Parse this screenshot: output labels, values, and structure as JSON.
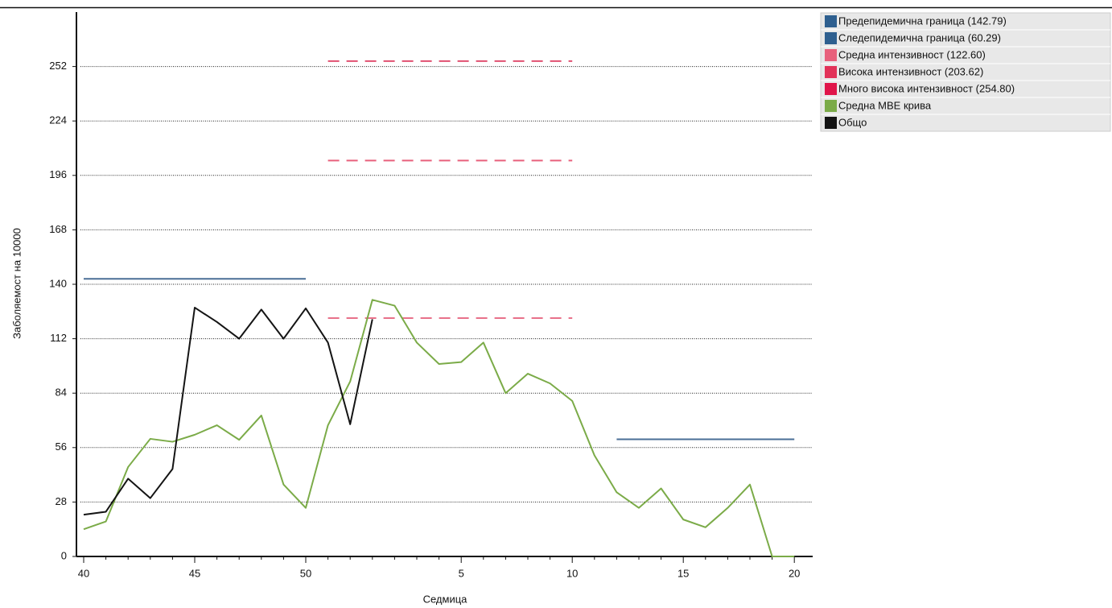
{
  "chart_data": {
    "type": "line",
    "x_label": "Седмица",
    "y_label": "Заболяемост на 10000",
    "categories": [
      "40",
      null,
      null,
      null,
      null,
      "45",
      null,
      null,
      null,
      null,
      "50",
      null,
      null,
      null,
      null,
      null,
      null,
      "5",
      null,
      null,
      null,
      null,
      "10",
      null,
      null,
      null,
      null,
      "15",
      null,
      null,
      null,
      null,
      "20"
    ],
    "ylim": [
      0,
      280
    ],
    "yticks": [
      0,
      28,
      56,
      84,
      112,
      140,
      168,
      196,
      224,
      252
    ],
    "grid": true,
    "legend": "top-right",
    "series": [
      {
        "name": "Предепидемична граница (142.79)",
        "color": "#2e5f8f",
        "line_color": "#4a6e96",
        "style": "solid",
        "values": [
          142.79,
          142.79,
          142.79,
          142.79,
          142.79,
          142.79,
          142.79,
          142.79,
          142.79,
          142.79,
          142.79,
          null,
          null,
          null,
          null,
          null,
          null,
          null,
          null,
          null,
          null,
          null,
          null,
          null,
          null,
          null,
          null,
          null,
          null,
          null,
          null,
          null,
          null
        ]
      },
      {
        "name": "Следепидемична граница (60.29)",
        "color": "#2e5f8f",
        "line_color": "#4a6e96",
        "style": "solid",
        "values": [
          null,
          null,
          null,
          null,
          null,
          null,
          null,
          null,
          null,
          null,
          null,
          null,
          null,
          null,
          null,
          null,
          null,
          null,
          null,
          null,
          null,
          null,
          null,
          null,
          60.29,
          60.29,
          60.29,
          60.29,
          60.29,
          60.29,
          60.29,
          60.29,
          60.29
        ]
      },
      {
        "name": "Средна интензивност (122.60)",
        "color": "#e8617c",
        "line_color": "#e8718a",
        "style": "dashed",
        "values": [
          null,
          null,
          null,
          null,
          null,
          null,
          null,
          null,
          null,
          null,
          null,
          122.6,
          122.6,
          122.6,
          122.6,
          122.6,
          122.6,
          122.6,
          122.6,
          122.6,
          122.6,
          122.6,
          122.6,
          null,
          null,
          null,
          null,
          null,
          null,
          null,
          null,
          null,
          null
        ]
      },
      {
        "name": "Висока интензивност (203.62)",
        "color": "#e23258",
        "line_color": "#e8607c",
        "style": "dashed",
        "values": [
          null,
          null,
          null,
          null,
          null,
          null,
          null,
          null,
          null,
          null,
          null,
          203.62,
          203.62,
          203.62,
          203.62,
          203.62,
          203.62,
          203.62,
          203.62,
          203.62,
          203.62,
          203.62,
          203.62,
          null,
          null,
          null,
          null,
          null,
          null,
          null,
          null,
          null,
          null
        ]
      },
      {
        "name": "Много висока интензивност (254.80)",
        "color": "#e0154a",
        "line_color": "#e05070",
        "style": "dashed",
        "values": [
          null,
          null,
          null,
          null,
          null,
          null,
          null,
          null,
          null,
          null,
          null,
          254.8,
          254.8,
          254.8,
          254.8,
          254.8,
          254.8,
          254.8,
          254.8,
          254.8,
          254.8,
          254.8,
          254.8,
          null,
          null,
          null,
          null,
          null,
          null,
          null,
          null,
          null,
          null
        ]
      },
      {
        "name": "Средна MBE крива",
        "color": "#7bab48",
        "line_color": "#7bab48",
        "style": "solid",
        "values": [
          14,
          18,
          46,
          60.5,
          59,
          62.6,
          67.5,
          60,
          72.5,
          37,
          25,
          67.5,
          90,
          132,
          129,
          110,
          99,
          100,
          110,
          84,
          94,
          89,
          80,
          52,
          33,
          25,
          35,
          19,
          15,
          25,
          37,
          0,
          0
        ]
      },
      {
        "name": "Общо",
        "color": "#141414",
        "line_color": "#141414",
        "style": "solid",
        "values": [
          21.5,
          23,
          40,
          30,
          45,
          128,
          120.6,
          112,
          127,
          112,
          127.6,
          110,
          68,
          122,
          null,
          null,
          null,
          null,
          null,
          null,
          null,
          null,
          null,
          null,
          null,
          null,
          null,
          null,
          null,
          null,
          null,
          null,
          null
        ]
      }
    ]
  }
}
